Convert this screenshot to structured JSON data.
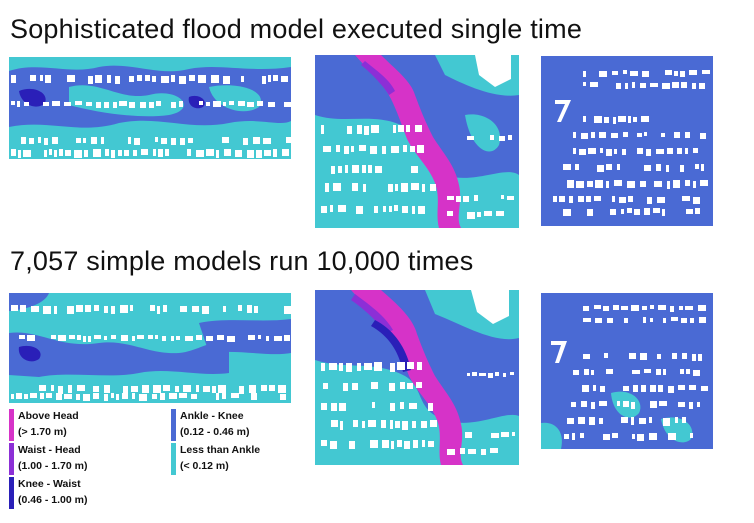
{
  "headings": {
    "top": "Sophisticated flood model executed single time",
    "bottom": "7,057 simple models run 10,000 times"
  },
  "colors": {
    "above_head": "#d633c8",
    "waist_head": "#8c2fd6",
    "knee_waist": "#2a1fb8",
    "ankle_knee": "#4a6ad4",
    "less_than_ankle": "#43c8d2",
    "building": "#ffffff"
  },
  "legend": [
    {
      "label": "Above Head",
      "range": "(> 1.70 m)",
      "color_key": "above_head"
    },
    {
      "label": "Waist - Head",
      "range": "(1.00 - 1.70 m)",
      "color_key": "waist_head"
    },
    {
      "label": "Knee - Waist",
      "range": "(0.46 - 1.00 m)",
      "color_key": "knee_waist"
    },
    {
      "label": "Ankle - Knee",
      "range": "(0.12 - 0.46 m)",
      "color_key": "ankle_knee"
    },
    {
      "label": "Less than Ankle",
      "range": "(< 0.12 m)",
      "color_key": "less_than_ankle"
    }
  ],
  "maps": [
    {
      "id": "top-left",
      "row": "top",
      "site": "left",
      "dominant": "mixed"
    },
    {
      "id": "top-middle",
      "row": "top",
      "site": "middle",
      "dominant": "river"
    },
    {
      "id": "top-right",
      "row": "top",
      "site": "right",
      "dominant": "ankle_knee"
    },
    {
      "id": "bottom-left",
      "row": "bottom",
      "site": "left",
      "dominant": "less_than_ankle"
    },
    {
      "id": "bottom-middle",
      "row": "bottom",
      "site": "middle",
      "dominant": "river"
    },
    {
      "id": "bottom-right",
      "row": "bottom",
      "site": "right",
      "dominant": "ankle_knee"
    }
  ]
}
